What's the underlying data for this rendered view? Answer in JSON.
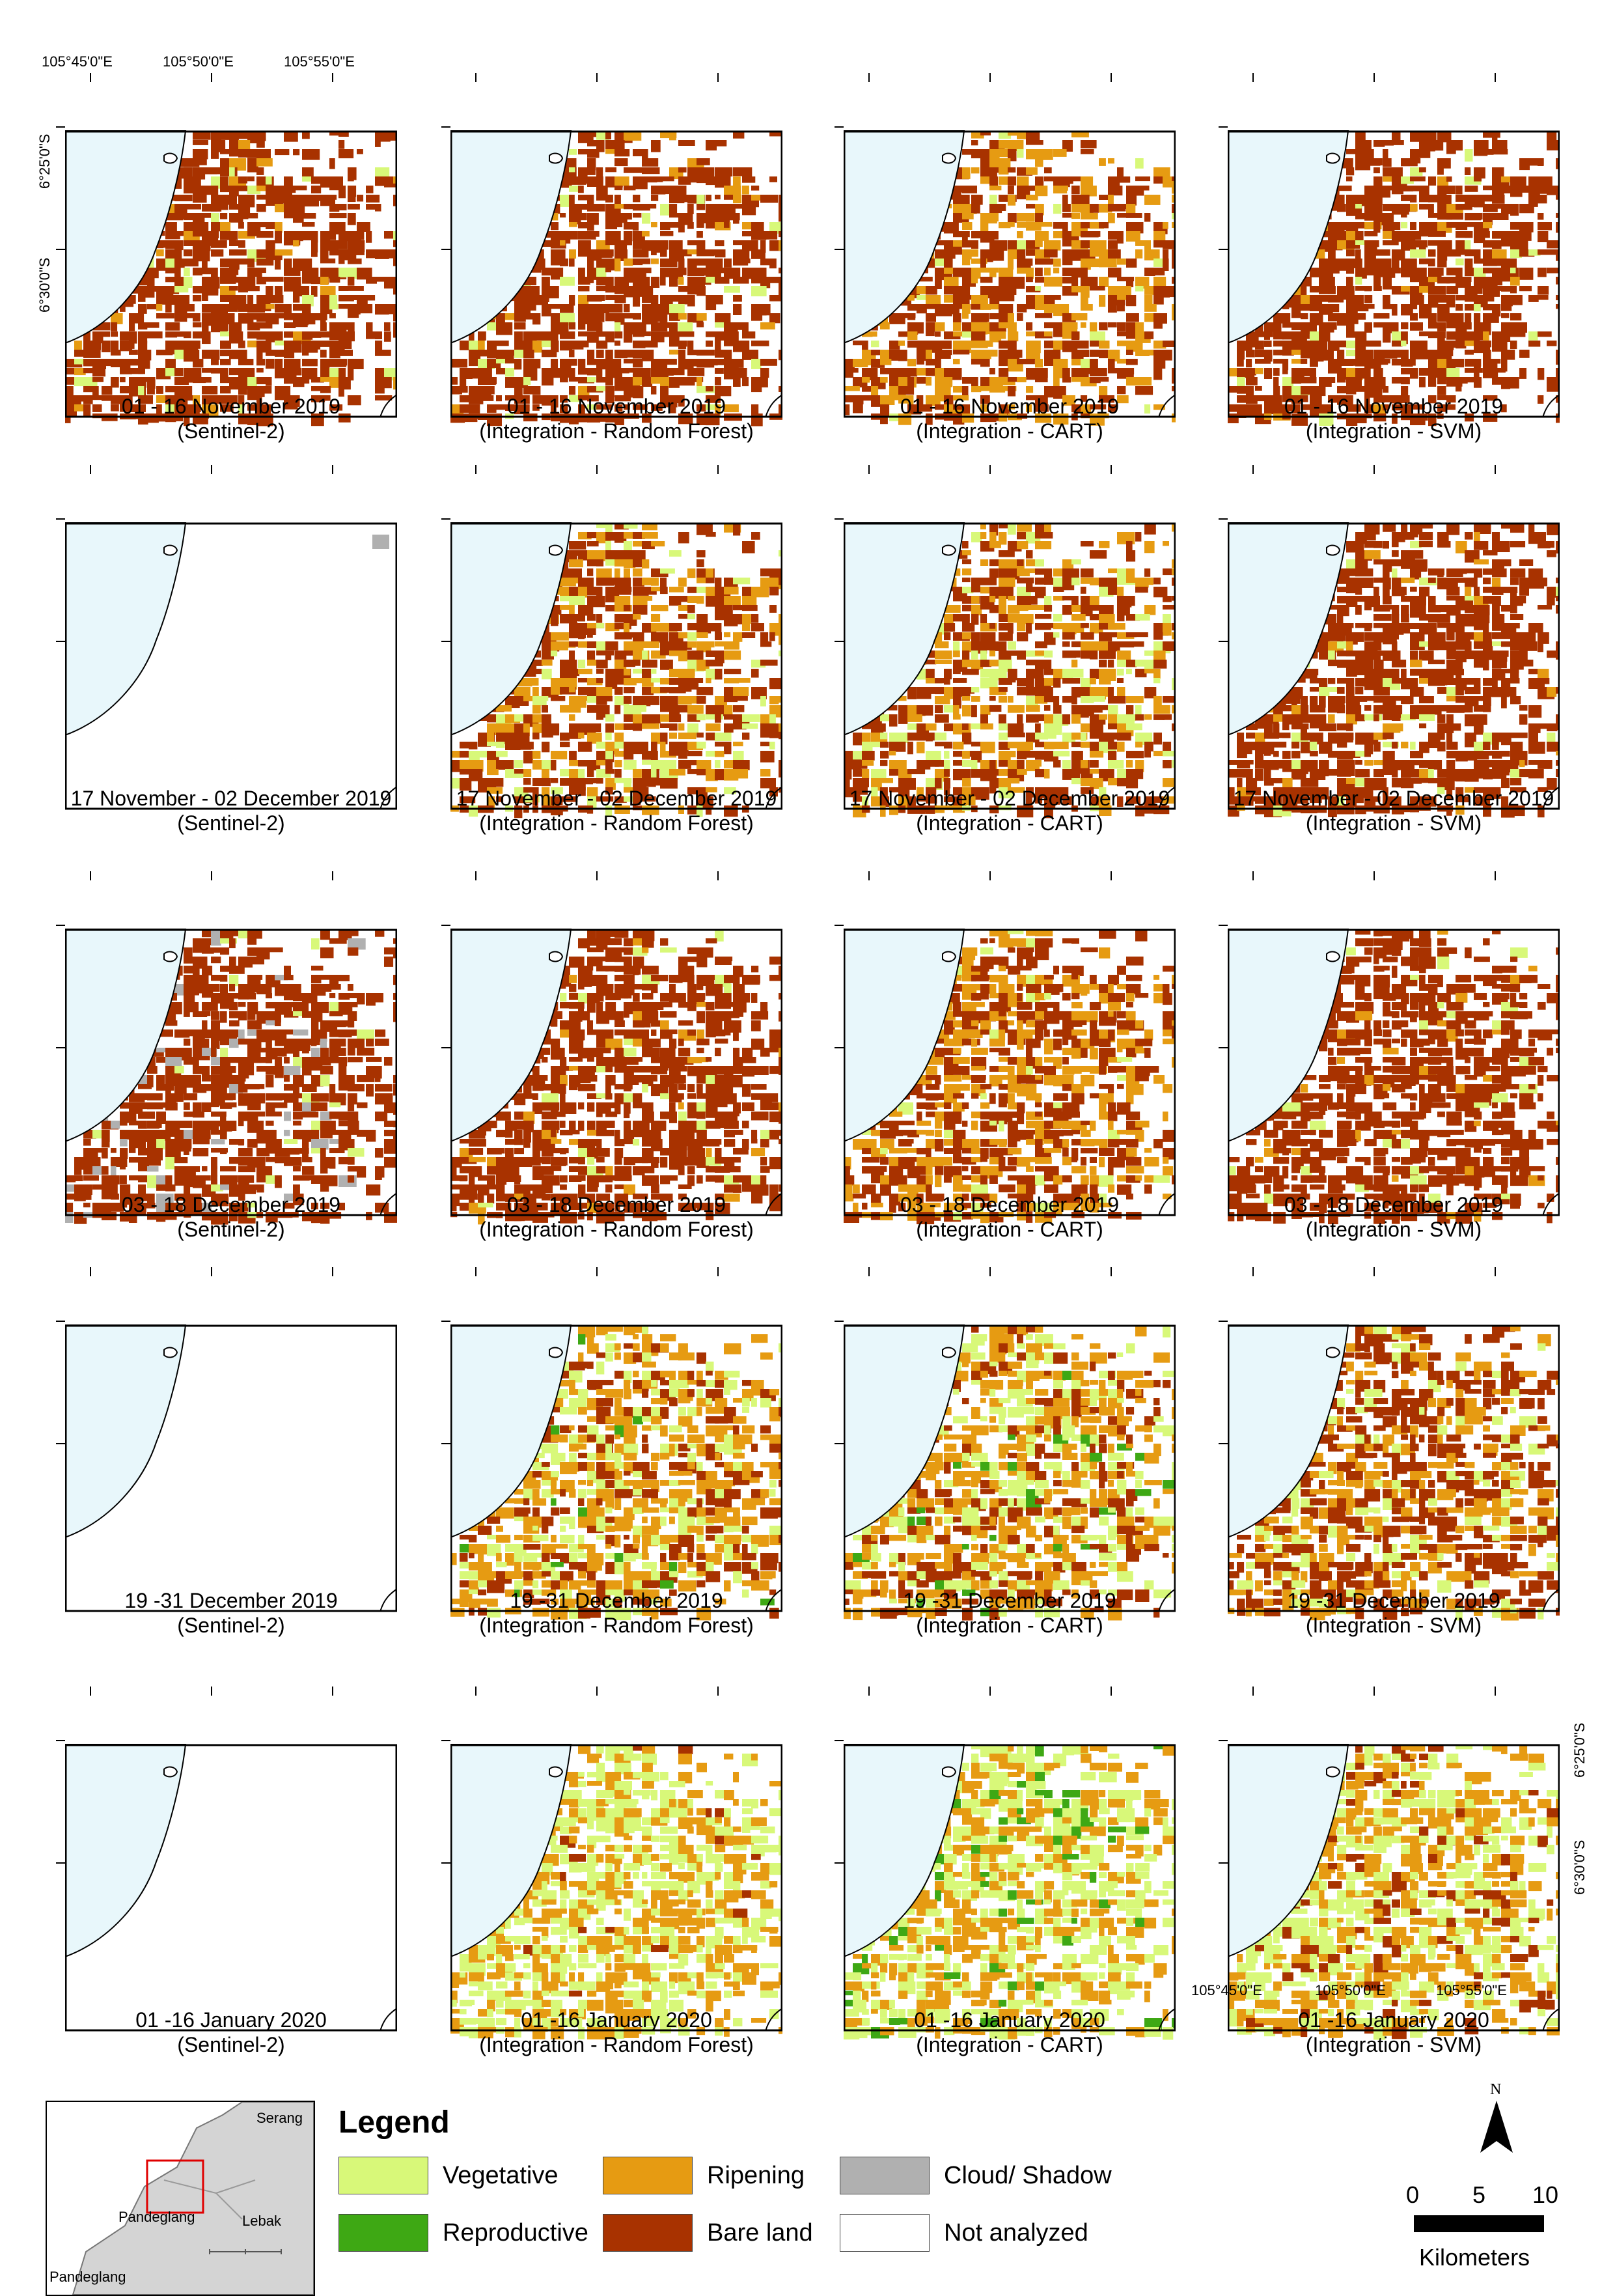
{
  "colors": {
    "sea": "#e8f7fb",
    "bare_land": "#a83200",
    "ripening": "#e69b12",
    "vegetative": "#d8f879",
    "reproductive": "#3ea814",
    "cloud_shadow": "#b0b0b0",
    "not_analyzed": "#ffffff"
  },
  "panels": [
    {
      "date": "01 - 16 November 2019",
      "source": "(Sentinel-2)",
      "mix": "bare",
      "coverage": 1
    },
    {
      "date": "01 - 16 November 2019",
      "source": "(Integration - Random Forest)",
      "mix": "bare",
      "coverage": 1
    },
    {
      "date": "01 - 16 November 2019",
      "source": "(Integration - CART)",
      "mix": "bare_ripe",
      "coverage": 1
    },
    {
      "date": "01 - 16 November 2019",
      "source": "(Integration - SVM)",
      "mix": "bare",
      "coverage": 1
    },
    {
      "date": "17 November - 02 December 2019",
      "source": "(Sentinel-2)",
      "mix": "empty",
      "coverage": 0
    },
    {
      "date": "17 November - 02 December 2019",
      "source": "(Integration - Random Forest)",
      "mix": "bare_ripe_veg",
      "coverage": 1
    },
    {
      "date": "17 November - 02 December 2019",
      "source": "(Integration - CART)",
      "mix": "bare_ripe_veg",
      "coverage": 1
    },
    {
      "date": "17 November - 02 December 2019",
      "source": "(Integration - SVM)",
      "mix": "bare",
      "coverage": 1
    },
    {
      "date": "03 - 18 December 2019",
      "source": "(Sentinel-2)",
      "mix": "bare_cloud",
      "coverage": 1
    },
    {
      "date": "03 - 18 December 2019",
      "source": "(Integration - Random Forest)",
      "mix": "bare",
      "coverage": 1
    },
    {
      "date": "03 - 18 December 2019",
      "source": "(Integration - CART)",
      "mix": "bare_ripe",
      "coverage": 1
    },
    {
      "date": "03 - 18 December 2019",
      "source": "(Integration - SVM)",
      "mix": "bare",
      "coverage": 1
    },
    {
      "date": "19 -31 December 2019",
      "source": "(Sentinel-2)",
      "mix": "empty",
      "coverage": 0
    },
    {
      "date": "19 -31 December 2019",
      "source": "(Integration - Random Forest)",
      "mix": "ripe_veg_bare",
      "coverage": 1
    },
    {
      "date": "19 -31 December 2019",
      "source": "(Integration - CART)",
      "mix": "ripe_veg_bare",
      "coverage": 1
    },
    {
      "date": "19 -31 December 2019",
      "source": "(Integration - SVM)",
      "mix": "bare_ripe_veg",
      "coverage": 1
    },
    {
      "date": "01 -16 January 2020",
      "source": "(Sentinel-2)",
      "mix": "empty",
      "coverage": 0
    },
    {
      "date": "01 -16 January 2020",
      "source": "(Integration - Random Forest)",
      "mix": "veg_ripe",
      "coverage": 1
    },
    {
      "date": "01 -16 January 2020",
      "source": "(Integration - CART)",
      "mix": "veg_ripe_repro",
      "coverage": 1
    },
    {
      "date": "01 -16 January 2020",
      "source": "(Integration - SVM)",
      "mix": "veg_ripe_bare",
      "coverage": 1
    }
  ],
  "coordinates": {
    "top_lon": [
      "105°45'0\"E",
      "105°50'0\"E",
      "105°55'0\"E"
    ],
    "left_lat": [
      "6°25'0\"S",
      "6°30'0\"S"
    ],
    "bottom_lon": [
      "105°45'0\"E",
      "105°50'0\"E",
      "105°55'0\"E"
    ],
    "right_lat": [
      "6°25'0\"S",
      "6°30'0\"S"
    ]
  },
  "inset": {
    "labels": [
      "Serang",
      "Pandeglang",
      "Lebak",
      "Pandeglang"
    ]
  },
  "legend": {
    "title": "Legend",
    "items": [
      {
        "label": "Vegetative",
        "color_key": "vegetative"
      },
      {
        "label": "Reproductive",
        "color_key": "reproductive"
      },
      {
        "label": "Ripening",
        "color_key": "ripening"
      },
      {
        "label": "Bare land",
        "color_key": "bare_land"
      },
      {
        "label": "Cloud/ Shadow",
        "color_key": "cloud_shadow"
      },
      {
        "label": "Not analyzed",
        "color_key": "not_analyzed"
      }
    ]
  },
  "north_arrow": {
    "label": "N"
  },
  "scale_bar": {
    "ticks": [
      "0",
      "5",
      "10"
    ],
    "unit": "Kilometers"
  }
}
